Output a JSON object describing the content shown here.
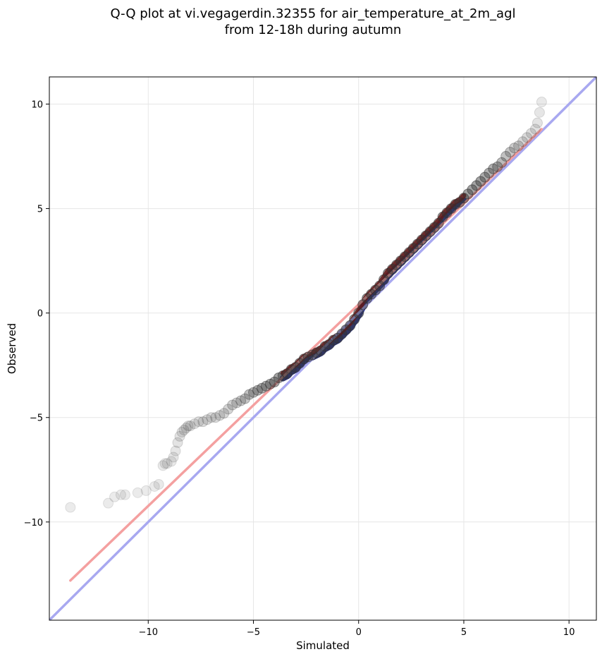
{
  "chart_data": {
    "type": "scatter",
    "title": "Q-Q plot at vi.vegagerdin.32355 for air_temperature_at_2m_agl",
    "subtitle": "from 12-18h during autumn",
    "xlabel": "Simulated",
    "ylabel": "Observed",
    "xlim": [
      -14.7,
      11.3
    ],
    "ylim": [
      -14.7,
      11.3
    ],
    "x_ticks": [
      -10,
      -5,
      0,
      5,
      10
    ],
    "y_ticks": [
      -10,
      -5,
      0,
      5,
      10
    ],
    "x_tick_labels": [
      "−10",
      "−5",
      "0",
      "5",
      "10"
    ],
    "y_tick_labels": [
      "−10",
      "−5",
      "0",
      "5",
      "10"
    ],
    "grid": true,
    "colors": {
      "points": "#333333",
      "fit_line": "#f4a0a0",
      "identity_line": "#a8a8f0",
      "central_underlay_blue": "#1a237e",
      "central_underlay_red": "#8b0000"
    },
    "lines": [
      {
        "role": "identity",
        "x": [
          -14.7,
          11.3
        ],
        "y": [
          -14.7,
          11.3
        ]
      },
      {
        "role": "fit",
        "x": [
          -13.7,
          8.7
        ],
        "y": [
          -12.8,
          8.8
        ]
      }
    ],
    "points": {
      "x": [
        -13.7,
        -11.9,
        -11.6,
        -11.3,
        -11.1,
        -10.5,
        -10.1,
        -9.7,
        -9.5,
        -9.3,
        -9.2,
        -9.1,
        -8.9,
        -8.8,
        -8.7,
        -8.6,
        -8.5,
        -8.4,
        -8.3,
        -8.2,
        -8.1,
        -8.0,
        -7.8,
        -7.6,
        -7.4,
        -7.2,
        -7.0,
        -6.8,
        -6.6,
        -6.4,
        -6.2,
        -6.0,
        -5.8,
        -5.6,
        -5.4,
        -5.2,
        -5.0,
        -4.8,
        -4.6,
        -4.4,
        -4.2,
        -4.0,
        -3.8,
        -3.6,
        -3.4,
        -3.2,
        -3.0,
        -2.8,
        -2.6,
        -2.4,
        -2.2,
        -2.0,
        -1.8,
        -1.6,
        -1.4,
        -1.2,
        -1.0,
        -0.8,
        -0.6,
        -0.4,
        -0.2,
        0.0,
        0.2,
        0.4,
        0.6,
        0.8,
        1.0,
        1.2,
        1.4,
        1.6,
        1.8,
        2.0,
        2.2,
        2.4,
        2.6,
        2.8,
        3.0,
        3.2,
        3.4,
        3.6,
        3.8,
        4.0,
        4.2,
        4.4,
        4.6,
        4.8,
        5.0,
        5.2,
        5.4,
        5.6,
        5.8,
        6.0,
        6.2,
        6.4,
        6.6,
        6.8,
        7.0,
        7.2,
        7.4,
        7.6,
        7.8,
        8.0,
        8.2,
        8.4,
        8.5,
        8.6,
        8.7
      ],
      "y": [
        -9.3,
        -9.1,
        -8.8,
        -8.7,
        -8.7,
        -8.6,
        -8.5,
        -8.3,
        -8.2,
        -7.3,
        -7.2,
        -7.2,
        -7.1,
        -6.9,
        -6.6,
        -6.2,
        -5.9,
        -5.7,
        -5.6,
        -5.5,
        -5.4,
        -5.4,
        -5.3,
        -5.2,
        -5.2,
        -5.1,
        -5.0,
        -5.0,
        -4.9,
        -4.8,
        -4.6,
        -4.4,
        -4.3,
        -4.2,
        -4.1,
        -3.9,
        -3.8,
        -3.7,
        -3.6,
        -3.5,
        -3.4,
        -3.3,
        -3.1,
        -3.0,
        -2.9,
        -2.7,
        -2.6,
        -2.4,
        -2.2,
        -2.1,
        -2.0,
        -1.9,
        -1.8,
        -1.6,
        -1.5,
        -1.3,
        -1.2,
        -1.0,
        -0.8,
        -0.6,
        -0.3,
        0.0,
        0.4,
        0.7,
        0.9,
        1.1,
        1.3,
        1.6,
        1.9,
        2.1,
        2.3,
        2.5,
        2.7,
        2.9,
        3.1,
        3.3,
        3.5,
        3.7,
        3.9,
        4.1,
        4.3,
        4.6,
        4.8,
        5.0,
        5.2,
        5.3,
        5.5,
        5.7,
        5.9,
        6.1,
        6.3,
        6.5,
        6.7,
        6.9,
        7.0,
        7.2,
        7.5,
        7.7,
        7.9,
        8.0,
        8.2,
        8.4,
        8.6,
        8.8,
        9.1,
        9.6,
        10.1
      ],
      "alpha": [
        0.18,
        0.18,
        0.18,
        0.18,
        0.18,
        0.18,
        0.18,
        0.18,
        0.2,
        0.2,
        0.2,
        0.2,
        0.2,
        0.22,
        0.22,
        0.25,
        0.25,
        0.25,
        0.25,
        0.25,
        0.25,
        0.27,
        0.27,
        0.27,
        0.3,
        0.3,
        0.3,
        0.32,
        0.32,
        0.35,
        0.38,
        0.4,
        0.42,
        0.45,
        0.5,
        0.55,
        0.6,
        0.65,
        0.7,
        0.7,
        0.75,
        0.75,
        0.8,
        0.8,
        0.85,
        0.85,
        0.85,
        0.85,
        0.85,
        0.85,
        0.85,
        0.85,
        0.85,
        0.85,
        0.85,
        0.85,
        0.85,
        0.85,
        0.85,
        0.85,
        0.85,
        0.85,
        0.85,
        0.85,
        0.85,
        0.85,
        0.85,
        0.85,
        0.85,
        0.85,
        0.85,
        0.85,
        0.85,
        0.85,
        0.85,
        0.85,
        0.85,
        0.85,
        0.85,
        0.85,
        0.85,
        0.85,
        0.85,
        0.85,
        0.85,
        0.85,
        0.85,
        0.8,
        0.8,
        0.8,
        0.8,
        0.75,
        0.7,
        0.7,
        0.65,
        0.6,
        0.55,
        0.5,
        0.45,
        0.4,
        0.35,
        0.32,
        0.3,
        0.27,
        0.25,
        0.22,
        0.2
      ]
    }
  }
}
